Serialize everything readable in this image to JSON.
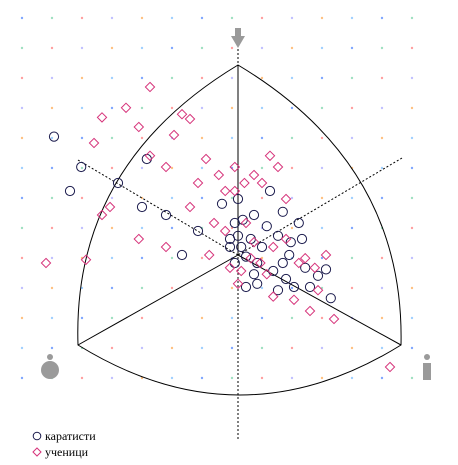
{
  "chart_data": {
    "type": "scatter",
    "axes": "ternary-like radial plot (three corner markers, dotted axes, curved triangle frame)",
    "grid": "dotted colored point grid",
    "legend_position": "bottom-left",
    "legend": [
      {
        "name": "каратисти",
        "marker": "circle",
        "color": "#1b1b4d"
      },
      {
        "name": "ученици",
        "marker": "diamond",
        "color": "#d6337a"
      }
    ],
    "series": [
      {
        "name": "каратисти",
        "marker": "circle",
        "color": "#1b1b4d",
        "points": [
          [
            -1.15,
            0.74
          ],
          [
            -0.98,
            0.55
          ],
          [
            -1.05,
            0.4
          ],
          [
            -0.75,
            0.45
          ],
          [
            -0.57,
            0.6
          ],
          [
            -0.6,
            0.3
          ],
          [
            -0.45,
            0.25
          ],
          [
            -0.35,
            0.0
          ],
          [
            -0.25,
            0.15
          ],
          [
            -0.1,
            0.32
          ],
          [
            -0.05,
            0.1
          ],
          [
            0.0,
            0.35
          ],
          [
            0.02,
            0.05
          ],
          [
            0.03,
            0.22
          ],
          [
            -0.02,
            0.2
          ],
          [
            0.0,
            0.12
          ],
          [
            0.05,
            -0.01
          ],
          [
            0.08,
            0.1
          ],
          [
            0.1,
            0.25
          ],
          [
            0.12,
            -0.05
          ],
          [
            0.15,
            0.05
          ],
          [
            0.18,
            0.18
          ],
          [
            0.2,
            0.4
          ],
          [
            0.22,
            -0.1
          ],
          [
            0.25,
            0.12
          ],
          [
            0.28,
            0.27
          ],
          [
            0.3,
            -0.15
          ],
          [
            0.32,
            0.0
          ],
          [
            0.33,
            0.08
          ],
          [
            0.35,
            -0.2
          ],
          [
            0.38,
            0.2
          ],
          [
            0.4,
            0.1
          ],
          [
            0.42,
            -0.08
          ],
          [
            0.45,
            -0.2
          ],
          [
            0.5,
            -0.13
          ],
          [
            0.55,
            -0.09
          ],
          [
            0.58,
            -0.27
          ],
          [
            0.25,
            -0.22
          ],
          [
            0.12,
            -0.18
          ],
          [
            0.05,
            -0.2
          ],
          [
            -0.05,
            0.05
          ],
          [
            0.28,
            -0.05
          ],
          [
            0.1,
            -0.12
          ],
          [
            -0.02,
            -0.05
          ]
        ]
      },
      {
        "name": "ученици",
        "marker": "diamond",
        "color": "#d6337a",
        "points": [
          [
            -0.55,
            1.05
          ],
          [
            -0.7,
            0.92
          ],
          [
            -0.85,
            0.86
          ],
          [
            -0.9,
            0.7
          ],
          [
            -0.62,
            0.8
          ],
          [
            -0.4,
            0.75
          ],
          [
            -0.35,
            0.88
          ],
          [
            -0.3,
            0.85
          ],
          [
            -0.55,
            0.62
          ],
          [
            -0.45,
            0.55
          ],
          [
            -0.8,
            0.3
          ],
          [
            -0.85,
            0.25
          ],
          [
            -0.95,
            -0.03
          ],
          [
            -1.2,
            -0.05
          ],
          [
            -0.62,
            0.1
          ],
          [
            -0.45,
            0.05
          ],
          [
            -0.3,
            0.3
          ],
          [
            -0.25,
            0.45
          ],
          [
            -0.2,
            0.6
          ],
          [
            -0.12,
            0.5
          ],
          [
            -0.08,
            0.4
          ],
          [
            -0.02,
            0.55
          ],
          [
            0.04,
            0.45
          ],
          [
            0.1,
            0.5
          ],
          [
            0.15,
            0.45
          ],
          [
            0.2,
            0.62
          ],
          [
            0.25,
            0.55
          ],
          [
            0.3,
            0.35
          ],
          [
            -0.15,
            0.2
          ],
          [
            -0.08,
            0.15
          ],
          [
            -0.05,
            -0.08
          ],
          [
            0.02,
            -0.1
          ],
          [
            0.08,
            -0.02
          ],
          [
            0.14,
            -0.05
          ],
          [
            0.18,
            -0.12
          ],
          [
            0.22,
            0.05
          ],
          [
            0.3,
            0.1
          ],
          [
            0.38,
            -0.05
          ],
          [
            0.42,
            -0.02
          ],
          [
            0.48,
            -0.08
          ],
          [
            0.55,
            0.0
          ],
          [
            0.45,
            -0.35
          ],
          [
            0.6,
            -0.4
          ],
          [
            0.95,
            -0.7
          ],
          [
            0.1,
            0.08
          ],
          [
            0.05,
            0.2
          ],
          [
            -0.18,
            0.0
          ],
          [
            -0.02,
            0.4
          ],
          [
            0.35,
            -0.28
          ],
          [
            0.5,
            -0.22
          ],
          [
            0.22,
            -0.26
          ],
          [
            0.0,
            -0.18
          ]
        ]
      }
    ]
  }
}
